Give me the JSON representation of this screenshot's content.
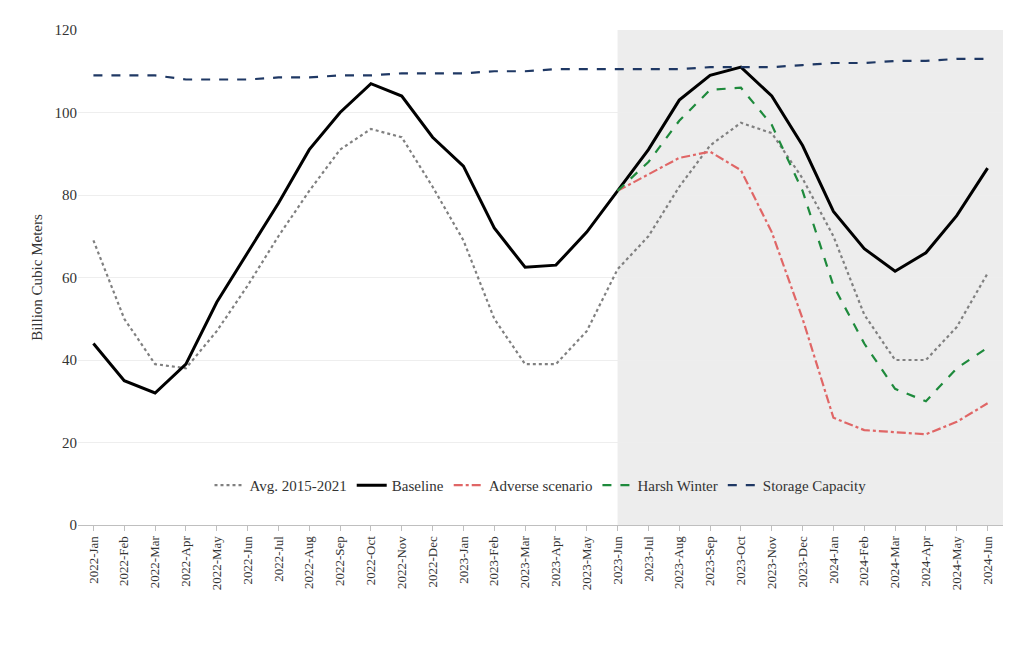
{
  "chart_data": {
    "type": "line",
    "y_label": "Billion Cubic Meters",
    "categories": [
      "2022-Jan",
      "2022-Feb",
      "2022-Mar",
      "2022-Apr",
      "2022-May",
      "2022-Jun",
      "2022-Jul",
      "2022-Aug",
      "2022-Sep",
      "2022-Oct",
      "2022-Nov",
      "2022-Dec",
      "2023-Jan",
      "2023-Feb",
      "2023-Mar",
      "2023-Apr",
      "2023-May",
      "2023-Jun",
      "2023-Jul",
      "2023-Aug",
      "2023-Sep",
      "2023-Oct",
      "2023-Nov",
      "2023-Dec",
      "2024-Jan",
      "2024-Feb",
      "2024-Mar",
      "2024-Apr",
      "2024-May",
      "2024-Jun"
    ],
    "series": [
      {
        "name": "Avg. 2015-2021",
        "color": "#808080",
        "line_style": "dot",
        "values": [
          69,
          50,
          39,
          38,
          47,
          58,
          70,
          81,
          91,
          96,
          94,
          82,
          69,
          50,
          39,
          39,
          47,
          62,
          70,
          82,
          92,
          97.5,
          95,
          84,
          70,
          51,
          40,
          40,
          48,
          61
        ]
      },
      {
        "name": "Baseline",
        "color": "#000000",
        "line_style": "solid",
        "values": [
          44,
          35,
          32,
          39,
          54,
          66,
          78,
          91,
          100,
          107,
          104,
          94,
          87,
          72,
          62.5,
          63,
          71,
          81,
          91,
          103,
          109,
          111,
          104,
          92,
          76,
          67,
          61.5,
          66,
          75,
          86.5
        ]
      },
      {
        "name": "Adverse scenario",
        "color": "#e06666",
        "line_style": "dashdot",
        "values": [
          null,
          null,
          null,
          null,
          null,
          null,
          null,
          null,
          null,
          null,
          null,
          null,
          null,
          null,
          null,
          null,
          null,
          81,
          85,
          89,
          90.5,
          86,
          71,
          50,
          26,
          23,
          22.5,
          22,
          25,
          29.5
        ]
      },
      {
        "name": "Harsh Winter",
        "color": "#1e8a3c",
        "line_style": "dash",
        "values": [
          null,
          null,
          null,
          null,
          null,
          null,
          null,
          null,
          null,
          null,
          null,
          null,
          null,
          null,
          null,
          null,
          null,
          81,
          88,
          98,
          105.5,
          106,
          97,
          81,
          58,
          44,
          33,
          30,
          38,
          43
        ]
      },
      {
        "name": "Storage Capacity",
        "color": "#1f3864",
        "line_style": "dash",
        "values": [
          109,
          109,
          109,
          108,
          108,
          108,
          108.5,
          108.5,
          109,
          109,
          109.5,
          109.5,
          109.5,
          110,
          110,
          110.5,
          110.5,
          110.5,
          110.5,
          110.5,
          111,
          111,
          111,
          111.5,
          112,
          112,
          112.5,
          112.5,
          113,
          113
        ]
      }
    ],
    "ylim": [
      0,
      120
    ],
    "yticks": [
      0,
      20,
      40,
      60,
      80,
      100,
      120
    ],
    "grid": true,
    "legend": "bottom"
  }
}
